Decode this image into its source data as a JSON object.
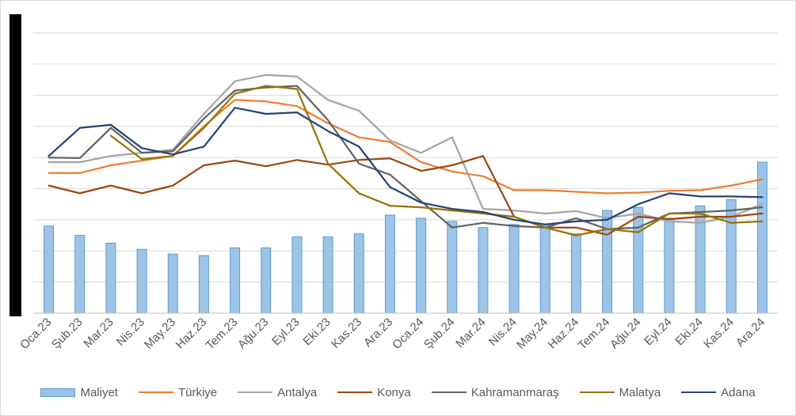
{
  "chart_data": {
    "type": "bar",
    "categories": [
      "Oca.23",
      "Şub.23",
      "Mar.23",
      "Nis.23",
      "May.23",
      "Haz.23",
      "Tem.23",
      "Ağu.23",
      "Eyl.23",
      "Eki.23",
      "Kas.23",
      "Ara.23",
      "Oca.24",
      "Şub.24",
      "Mar.24",
      "Nis.24",
      "May.24",
      "Haz.24",
      "Tem.24",
      "Ağu.24",
      "Eyl.24",
      "Eki.24",
      "Kas.24",
      "Ara.24"
    ],
    "ylim": [
      0,
      9.5
    ],
    "yticks": [
      0,
      1,
      2,
      3,
      4,
      5,
      6,
      7,
      8,
      9
    ],
    "grid": true,
    "legend_position": "bottom",
    "series": [
      {
        "name": "Maliyet",
        "kind": "bar",
        "color": "#9dc3e6",
        "edge": "#5b9bd5",
        "values": [
          2.8,
          2.5,
          2.25,
          2.05,
          1.9,
          1.85,
          2.1,
          2.1,
          2.45,
          2.45,
          2.55,
          3.15,
          3.05,
          2.95,
          2.75,
          2.85,
          2.85,
          2.55,
          3.3,
          3.4,
          3.05,
          3.45,
          3.65,
          4.85
        ]
      },
      {
        "name": "Türkiye",
        "kind": "line",
        "color": "#ed7d31",
        "values": [
          4.5,
          4.5,
          4.75,
          4.9,
          5.05,
          6.0,
          6.85,
          6.8,
          6.65,
          6.1,
          5.65,
          5.5,
          4.85,
          4.55,
          4.4,
          3.95,
          3.95,
          3.9,
          3.85,
          3.87,
          3.93,
          3.95,
          4.1,
          4.3
        ]
      },
      {
        "name": "Antalya",
        "kind": "line",
        "color": "#a5a5a5",
        "values": [
          4.85,
          4.85,
          5.05,
          5.15,
          5.25,
          6.4,
          7.45,
          7.65,
          7.6,
          6.85,
          6.5,
          5.55,
          5.15,
          5.65,
          3.35,
          3.3,
          3.2,
          3.28,
          3.05,
          3.2,
          2.95,
          2.9,
          3.1,
          3.5
        ]
      },
      {
        "name": "Konya",
        "kind": "line",
        "color": "#9e480e",
        "values": [
          4.1,
          3.85,
          4.1,
          3.85,
          4.1,
          4.75,
          4.9,
          4.72,
          4.92,
          4.77,
          4.92,
          4.97,
          4.57,
          4.75,
          5.05,
          3.1,
          2.75,
          2.75,
          2.52,
          3.1,
          3.02,
          3.1,
          3.1,
          3.2
        ]
      },
      {
        "name": "Kahramanmaraş",
        "kind": "line",
        "color": "#636363",
        "values": [
          5.0,
          4.98,
          5.95,
          5.15,
          5.2,
          6.25,
          7.15,
          7.25,
          7.3,
          6.2,
          4.8,
          4.45,
          3.6,
          2.75,
          2.9,
          2.8,
          2.75,
          3.05,
          2.7,
          2.75,
          3.2,
          3.25,
          3.3,
          3.4
        ]
      },
      {
        "name": "Malatya",
        "kind": "line",
        "color": "#997300",
        "values": [
          null,
          null,
          5.7,
          4.95,
          5.05,
          5.95,
          7.05,
          7.3,
          7.2,
          4.8,
          3.85,
          3.45,
          3.4,
          3.3,
          3.2,
          3.1,
          2.75,
          2.5,
          2.7,
          2.6,
          3.2,
          3.2,
          2.9,
          2.95
        ]
      },
      {
        "name": "Adana",
        "kind": "line",
        "color": "#264478",
        "values": [
          5.05,
          5.95,
          6.05,
          5.3,
          5.1,
          5.35,
          6.6,
          6.4,
          6.45,
          5.85,
          5.35,
          4.05,
          3.55,
          3.35,
          3.25,
          3.0,
          2.85,
          2.95,
          3.0,
          3.5,
          3.85,
          3.75,
          3.75,
          3.73
        ]
      }
    ]
  }
}
